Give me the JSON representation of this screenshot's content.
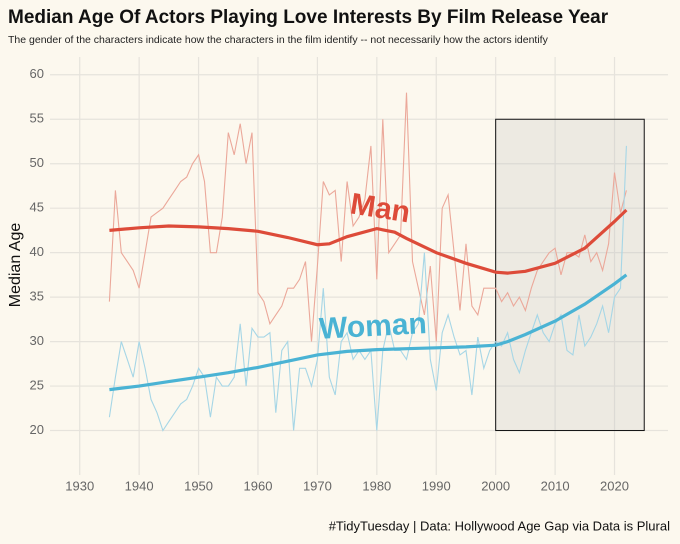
{
  "chart_data": {
    "type": "line",
    "title": "Median Age Of Actors Playing Love Interests By Film Release Year",
    "subtitle": "The gender of the characters indicate how the characters in the film identify -- not necessarily how the actors identify",
    "y_label": "Median Age",
    "caption": "#TidyTuesday | Data: Hollywood Age Gap via Data is Plural",
    "xlim": [
      1925,
      2029
    ],
    "ylim": [
      15,
      62
    ],
    "xticks": [
      1930,
      1940,
      1950,
      1960,
      1970,
      1980,
      1990,
      2000,
      2010,
      2020
    ],
    "yticks": [
      20,
      25,
      30,
      35,
      40,
      45,
      50,
      55,
      60
    ],
    "grid": true,
    "x": [
      1935,
      1936,
      1937,
      1938,
      1939,
      1940,
      1941,
      1942,
      1943,
      1944,
      1945,
      1946,
      1947,
      1948,
      1949,
      1950,
      1951,
      1952,
      1953,
      1954,
      1955,
      1956,
      1957,
      1958,
      1959,
      1960,
      1961,
      1962,
      1963,
      1964,
      1965,
      1966,
      1967,
      1968,
      1969,
      1970,
      1971,
      1972,
      1973,
      1974,
      1975,
      1976,
      1977,
      1978,
      1979,
      1980,
      1981,
      1982,
      1983,
      1984,
      1985,
      1986,
      1987,
      1988,
      1989,
      1990,
      1991,
      1992,
      1993,
      1994,
      1995,
      1996,
      1997,
      1998,
      1999,
      2000,
      2001,
      2002,
      2003,
      2004,
      2005,
      2006,
      2007,
      2008,
      2009,
      2010,
      2011,
      2012,
      2013,
      2014,
      2015,
      2016,
      2017,
      2018,
      2019,
      2020,
      2021,
      2022
    ],
    "series": [
      {
        "color": "#eba89a",
        "values": [
          34.5,
          47,
          40,
          39,
          38,
          36,
          40,
          44,
          44.5,
          45,
          46,
          47,
          48,
          48.5,
          50,
          51,
          48,
          40,
          40,
          44,
          53.5,
          51,
          54.5,
          50,
          53.5,
          35.5,
          34.5,
          32,
          33,
          34,
          36,
          36,
          37,
          39,
          30,
          38.5,
          48,
          46.5,
          47,
          39,
          48,
          43,
          44,
          46,
          52,
          37,
          55,
          40,
          41,
          42,
          58,
          39,
          36,
          33,
          38.5,
          30,
          45,
          46.5,
          40,
          33.5,
          41,
          34,
          33,
          36,
          36,
          36,
          34.5,
          35.5,
          34,
          35,
          33.5,
          36,
          38,
          39,
          40,
          40.5,
          37.5,
          40,
          40,
          39.5,
          42,
          39,
          40,
          38,
          41,
          49,
          44.5,
          47
        ]
      },
      {
        "color": "#a6d6e6",
        "values": [
          21.5,
          26,
          30,
          28,
          26,
          30,
          27,
          23.5,
          22,
          20,
          21,
          22,
          23,
          23.5,
          25,
          27,
          26,
          21.5,
          26,
          25,
          25,
          26,
          32,
          25,
          31.5,
          30.5,
          30.5,
          31,
          22,
          29,
          30,
          20,
          27,
          27,
          25,
          28,
          36,
          26,
          24,
          30,
          31,
          28,
          29,
          28,
          29,
          20,
          29,
          32,
          29,
          29,
          28,
          31,
          32,
          40,
          28,
          24.5,
          31,
          33,
          30.5,
          28.5,
          29,
          24,
          30.5,
          27,
          29,
          30,
          29.5,
          31,
          28,
          26.5,
          29,
          31,
          33,
          31,
          30,
          32,
          33,
          29,
          28.5,
          33,
          29.5,
          30.5,
          32,
          34,
          31,
          35,
          36,
          52
        ]
      }
    ],
    "trends": [
      {
        "name": "Man",
        "color": "#dd4b39",
        "x": [
          1935,
          1940,
          1945,
          1950,
          1955,
          1960,
          1965,
          1970,
          1972,
          1975,
          1980,
          1983,
          1985,
          1990,
          1995,
          2000,
          2002,
          2005,
          2010,
          2015,
          2020,
          2022
        ],
        "values": [
          42.5,
          42.8,
          43,
          42.9,
          42.7,
          42.4,
          41.7,
          40.9,
          41,
          41.8,
          42.7,
          42.3,
          41.6,
          40,
          38.8,
          37.8,
          37.7,
          37.9,
          38.8,
          40.5,
          43.5,
          44.8
        ]
      },
      {
        "name": "Woman",
        "color": "#4ab3d4",
        "x": [
          1935,
          1940,
          1945,
          1950,
          1955,
          1960,
          1965,
          1970,
          1975,
          1980,
          1985,
          1990,
          1995,
          2000,
          2002,
          2005,
          2010,
          2015,
          2020,
          2022
        ],
        "values": [
          24.6,
          25,
          25.5,
          26,
          26.5,
          27.1,
          27.8,
          28.5,
          28.9,
          29.1,
          29.2,
          29.3,
          29.4,
          29.6,
          30,
          30.8,
          32.3,
          34.2,
          36.5,
          37.5
        ]
      }
    ],
    "highlight": {
      "xlim": [
        2000,
        2025
      ],
      "ylim": [
        20,
        55
      ]
    }
  }
}
